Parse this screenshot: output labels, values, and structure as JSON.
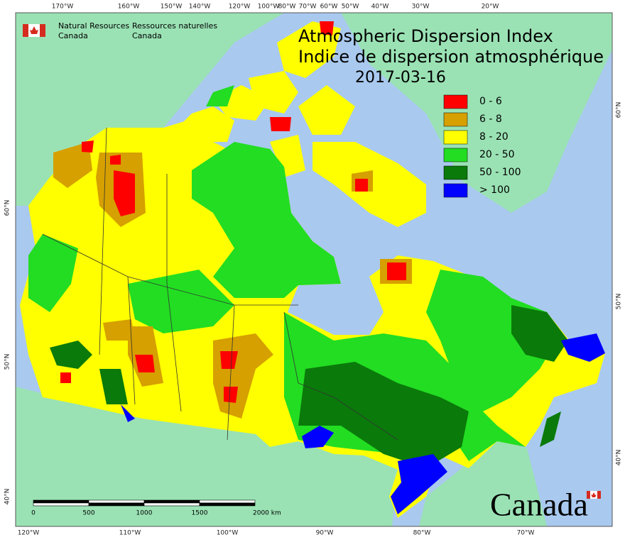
{
  "agency": {
    "en_line1": "Natural Resources",
    "en_line2": "Canada",
    "fr_line1": "Ressources naturelles",
    "fr_line2": "Canada"
  },
  "title": {
    "en": "Atmospheric Dispersion Index",
    "fr": "Indice de dispersion atmosphérique",
    "date": "2017-03-16"
  },
  "legend": [
    {
      "label": "0 - 6",
      "color": "#ff0000"
    },
    {
      "label": "6 - 8",
      "color": "#d6a000"
    },
    {
      "label": "8 - 20",
      "color": "#ffff00"
    },
    {
      "label": "20 - 50",
      "color": "#22dd22"
    },
    {
      "label": "50 - 100",
      "color": "#0a7a0a"
    },
    {
      "label": "> 100",
      "color": "#0000ff"
    }
  ],
  "graticule": {
    "top": [
      "170°W",
      "160°W",
      "150°W",
      "140°W",
      "120°W",
      "100°W",
      "80°W",
      "70°W",
      "60°W",
      "50°W",
      "40°W",
      "30°W",
      "20°W"
    ],
    "bottom": [
      "120°W",
      "110°W",
      "100°W",
      "90°W",
      "80°W",
      "70°W"
    ],
    "left": [
      "60°N",
      "50°N",
      "40°N"
    ],
    "right": [
      "60°N",
      "50°N",
      "40°N"
    ]
  },
  "scale_bar": {
    "labels": [
      "0",
      "500",
      "1000",
      "1500",
      "2000 km"
    ]
  },
  "wordmark": "Canada"
}
